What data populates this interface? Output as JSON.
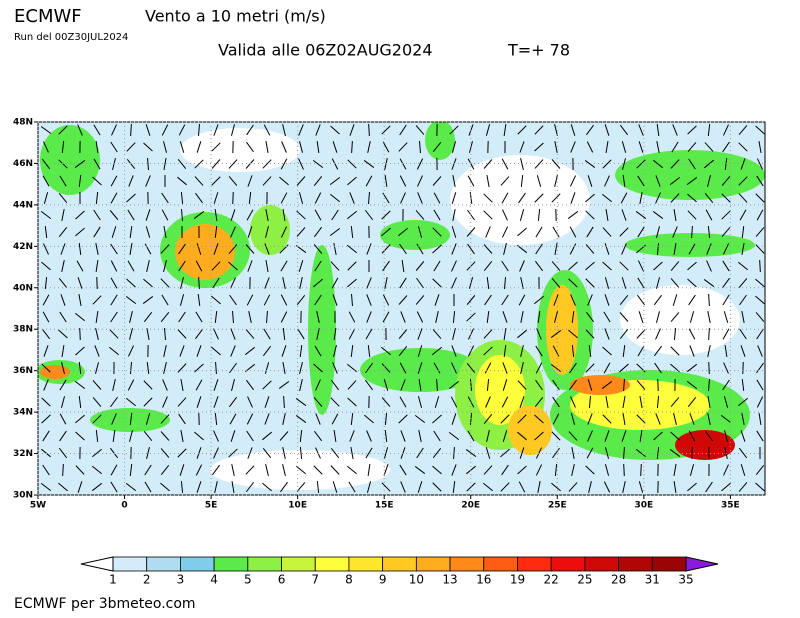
{
  "header": {
    "model": "ECMWF",
    "title": "Vento a 10 metri (m/s)",
    "run": "Run del 00Z30JUL2024",
    "valid": "Valida alle 06Z02AUG2024",
    "step": "T=+ 78"
  },
  "map": {
    "lat_range": [
      30,
      48
    ],
    "lon_range": [
      -5,
      37
    ],
    "lat_ticks": [
      {
        "value": 48,
        "label": "48N"
      },
      {
        "value": 46,
        "label": "46N"
      },
      {
        "value": 44,
        "label": "44N"
      },
      {
        "value": 42,
        "label": "42N"
      },
      {
        "value": 40,
        "label": "40N"
      },
      {
        "value": 38,
        "label": "38N"
      },
      {
        "value": 36,
        "label": "36N"
      },
      {
        "value": 34,
        "label": "34N"
      },
      {
        "value": 32,
        "label": "32N"
      },
      {
        "value": 30,
        "label": "30N"
      }
    ],
    "lon_ticks": [
      {
        "value": -5,
        "label": "5W"
      },
      {
        "value": 0,
        "label": "0"
      },
      {
        "value": 5,
        "label": "5E"
      },
      {
        "value": 10,
        "label": "10E"
      },
      {
        "value": 15,
        "label": "15E"
      },
      {
        "value": 20,
        "label": "20E"
      },
      {
        "value": 25,
        "label": "25E"
      },
      {
        "value": 30,
        "label": "30E"
      },
      {
        "value": 35,
        "label": "35E"
      }
    ]
  },
  "legend": {
    "levels": [
      1,
      2,
      3,
      4,
      5,
      6,
      7,
      8,
      9,
      10,
      13,
      16,
      19,
      22,
      25,
      28,
      31,
      35
    ],
    "colors": [
      "#d4ecfa",
      "#b0dcf0",
      "#7fcde8",
      "#5aeb4a",
      "#8ef044",
      "#c8f53c",
      "#fffe3a",
      "#ffe82b",
      "#ffc822",
      "#ffac1e",
      "#ff8a1a",
      "#ff5c14",
      "#ff2a10",
      "#ee0c0c",
      "#d00808",
      "#b00606",
      "#9a0404"
    ],
    "under_color": "#ffffff",
    "over_color": "#8a1adc"
  },
  "footer": "ECMWF per 3bmeteo.com"
}
